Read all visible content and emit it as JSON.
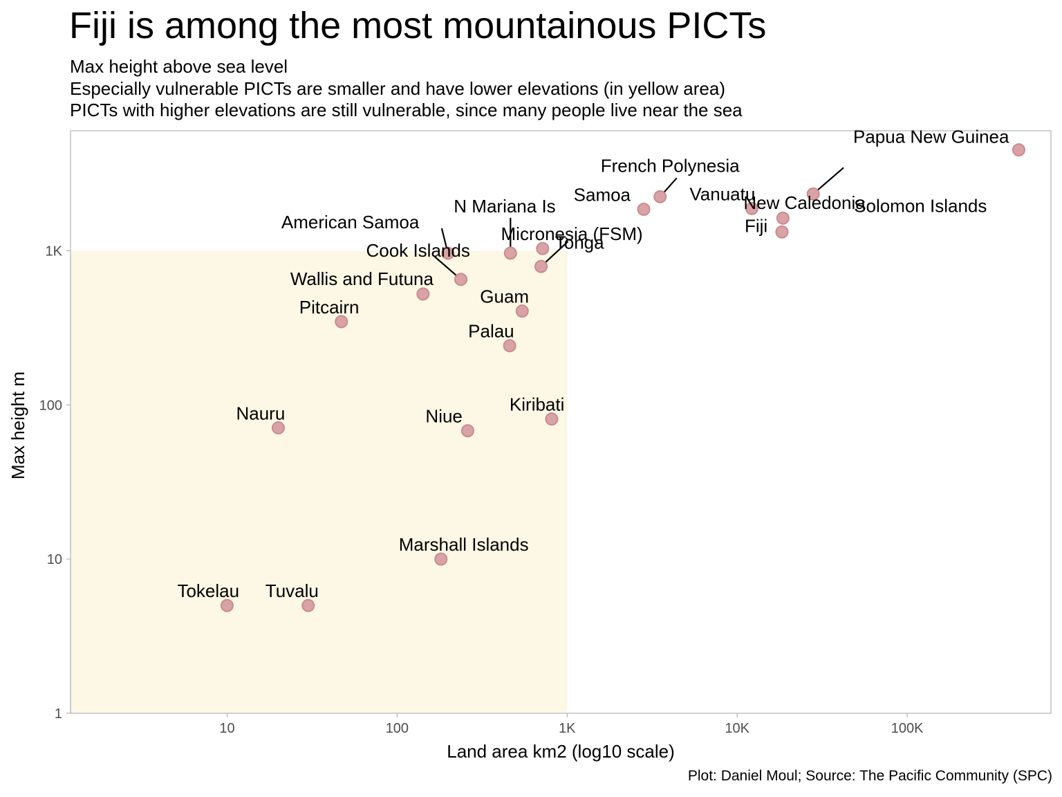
{
  "title": "Fiji is among the most mountainous PICTs",
  "subtitle_lines": [
    "Max height above sea level",
    "Especially vulnerable PICTs are smaller and have lower elevations (in yellow area)",
    "PICTs with higher elevations are still vulnerable, since many people live near the sea"
  ],
  "caption": "Plot: Daniel Moul; Source: The Pacific Community (SPC)",
  "colors": {
    "point_fill": "#d8a3a6",
    "point_stroke": "#cc8a8f",
    "highlight_area": "#fdf8e5",
    "panel_border": "#b3b3b3"
  },
  "chart_data": {
    "type": "scatter",
    "xlabel": "Land area km2 (log10 scale)",
    "ylabel": "Max height m",
    "x_scale": "log10",
    "y_scale": "log10",
    "xlim": [
      1.2,
      700000
    ],
    "ylim": [
      1,
      6000
    ],
    "x_ticks": [
      10,
      100,
      1000,
      10000,
      100000
    ],
    "x_tick_labels": [
      "10",
      "100",
      "1K",
      "10K",
      "100K"
    ],
    "y_ticks": [
      1,
      10,
      100,
      1000
    ],
    "y_tick_labels": [
      "1",
      "10",
      "100",
      "1K"
    ],
    "grid": false,
    "highlight_region": {
      "x": [
        1.2,
        1000
      ],
      "y": [
        1,
        1000
      ]
    },
    "points": [
      {
        "label": "Papua New Guinea",
        "x": 452860,
        "y": 4509
      },
      {
        "label": "French Polynesia",
        "x": 3521,
        "y": 2241
      },
      {
        "label": "New Caledonia",
        "x": 18576,
        "y": 1628
      },
      {
        "label": "Solomon Islands",
        "x": 27986,
        "y": 2335
      },
      {
        "label": "Samoa",
        "x": 2820,
        "y": 1857
      },
      {
        "label": "Vanuatu",
        "x": 12190,
        "y": 1879
      },
      {
        "label": "Fiji",
        "x": 18333,
        "y": 1324
      },
      {
        "label": "American Samoa",
        "x": 199,
        "y": 964
      },
      {
        "label": "N Mariana Is",
        "x": 464,
        "y": 965
      },
      {
        "label": "Micronesia (FSM)",
        "x": 702,
        "y": 791
      },
      {
        "label": "Tonga",
        "x": 717,
        "y": 1033
      },
      {
        "label": "Cook Islands",
        "x": 237,
        "y": 652
      },
      {
        "label": "Wallis and Futuna",
        "x": 142,
        "y": 524
      },
      {
        "label": "Guam",
        "x": 544,
        "y": 406
      },
      {
        "label": "Pitcairn",
        "x": 47,
        "y": 347
      },
      {
        "label": "Palau",
        "x": 459,
        "y": 242
      },
      {
        "label": "Kiribati",
        "x": 811,
        "y": 81
      },
      {
        "label": "Nauru",
        "x": 20,
        "y": 71
      },
      {
        "label": "Niue",
        "x": 260,
        "y": 68
      },
      {
        "label": "Marshall Islands",
        "x": 181,
        "y": 10
      },
      {
        "label": "Tokelau",
        "x": 10,
        "y": 5
      },
      {
        "label": "Tuvalu",
        "x": 30,
        "y": 5
      }
    ]
  }
}
